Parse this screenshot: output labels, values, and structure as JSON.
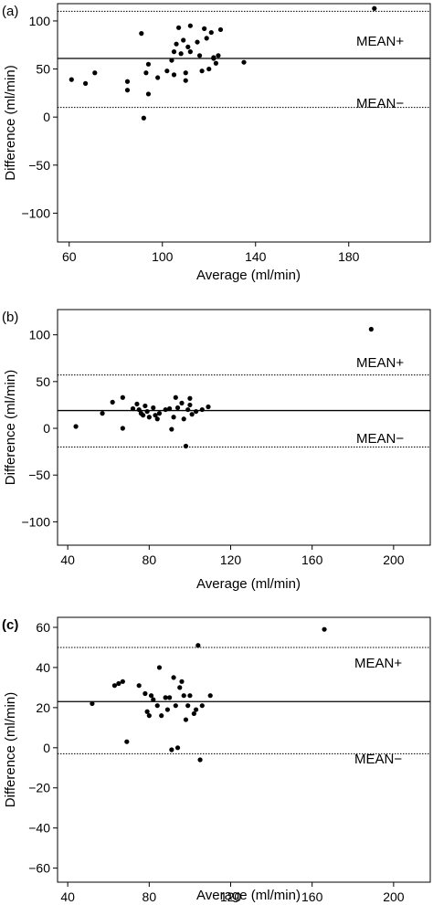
{
  "chart_data": [
    {
      "type": "scatter",
      "panel_label": "(a)",
      "xlabel": "Average (ml/min)",
      "ylabel": "Difference (ml/min)",
      "xlim": [
        55,
        215
      ],
      "ylim": [
        -130,
        118
      ],
      "xticks": [
        60,
        100,
        140,
        180
      ],
      "yticks": [
        100,
        50,
        0,
        -50,
        -100
      ],
      "lines": {
        "mean": 61,
        "upper": 110,
        "lower": 10
      },
      "annotations": [
        "MEAN+",
        "MEAN−"
      ],
      "points": [
        {
          "x": 61,
          "y": 39
        },
        {
          "x": 67,
          "y": 35
        },
        {
          "x": 71,
          "y": 46
        },
        {
          "x": 85,
          "y": 37
        },
        {
          "x": 85,
          "y": 28
        },
        {
          "x": 91,
          "y": 87
        },
        {
          "x": 92,
          "y": -1
        },
        {
          "x": 93,
          "y": 46
        },
        {
          "x": 94,
          "y": 55
        },
        {
          "x": 94,
          "y": 24
        },
        {
          "x": 98,
          "y": 41
        },
        {
          "x": 102,
          "y": 48
        },
        {
          "x": 104,
          "y": 59
        },
        {
          "x": 105,
          "y": 68
        },
        {
          "x": 105,
          "y": 44
        },
        {
          "x": 106,
          "y": 76
        },
        {
          "x": 107,
          "y": 93
        },
        {
          "x": 108,
          "y": 66
        },
        {
          "x": 109,
          "y": 80
        },
        {
          "x": 110,
          "y": 46
        },
        {
          "x": 110,
          "y": 38
        },
        {
          "x": 111,
          "y": 73
        },
        {
          "x": 112,
          "y": 68
        },
        {
          "x": 112,
          "y": 95
        },
        {
          "x": 115,
          "y": 78
        },
        {
          "x": 116,
          "y": 64
        },
        {
          "x": 117,
          "y": 48
        },
        {
          "x": 118,
          "y": 92
        },
        {
          "x": 119,
          "y": 82
        },
        {
          "x": 120,
          "y": 50
        },
        {
          "x": 121,
          "y": 88
        },
        {
          "x": 122,
          "y": 61
        },
        {
          "x": 122,
          "y": 62
        },
        {
          "x": 123,
          "y": 56
        },
        {
          "x": 124,
          "y": 64
        },
        {
          "x": 125,
          "y": 91
        },
        {
          "x": 135,
          "y": 57
        },
        {
          "x": 191,
          "y": 113
        }
      ]
    },
    {
      "type": "scatter",
      "panel_label": "(b)",
      "xlabel": "Average (ml/min)",
      "ylabel": "Difference (ml/min)",
      "xlim": [
        35,
        218
      ],
      "ylim": [
        -125,
        127
      ],
      "xticks": [
        40,
        80,
        120,
        160,
        200
      ],
      "yticks": [
        100,
        50,
        0,
        -50,
        -100
      ],
      "lines": {
        "mean": 19,
        "upper": 57,
        "lower": -20
      },
      "annotations": [
        "MEAN+",
        "MEAN−"
      ],
      "points": [
        {
          "x": 44,
          "y": 2
        },
        {
          "x": 57,
          "y": 16
        },
        {
          "x": 62,
          "y": 28
        },
        {
          "x": 67,
          "y": 33
        },
        {
          "x": 67,
          "y": 0
        },
        {
          "x": 72,
          "y": 21
        },
        {
          "x": 74,
          "y": 26
        },
        {
          "x": 75,
          "y": 20
        },
        {
          "x": 76,
          "y": 16
        },
        {
          "x": 77,
          "y": 14
        },
        {
          "x": 78,
          "y": 24
        },
        {
          "x": 79,
          "y": 18
        },
        {
          "x": 80,
          "y": 12
        },
        {
          "x": 82,
          "y": 22
        },
        {
          "x": 83,
          "y": 14
        },
        {
          "x": 84,
          "y": 10
        },
        {
          "x": 85,
          "y": 16
        },
        {
          "x": 88,
          "y": 20
        },
        {
          "x": 90,
          "y": 21
        },
        {
          "x": 91,
          "y": -1
        },
        {
          "x": 92,
          "y": 12
        },
        {
          "x": 93,
          "y": 33
        },
        {
          "x": 94,
          "y": 22
        },
        {
          "x": 96,
          "y": 27
        },
        {
          "x": 97,
          "y": 10
        },
        {
          "x": 98,
          "y": -19
        },
        {
          "x": 99,
          "y": 20
        },
        {
          "x": 100,
          "y": 32
        },
        {
          "x": 100,
          "y": 25
        },
        {
          "x": 101,
          "y": 15
        },
        {
          "x": 103,
          "y": 18
        },
        {
          "x": 106,
          "y": 20
        },
        {
          "x": 109,
          "y": 23
        },
        {
          "x": 189,
          "y": 106
        }
      ]
    },
    {
      "type": "scatter",
      "panel_label": "(c)",
      "xlabel": "Average (ml/min)",
      "ylabel": "Difference (ml/min)",
      "xlim": [
        35,
        218
      ],
      "ylim": [
        -67,
        65
      ],
      "xticks": [
        40,
        80,
        120,
        160,
        200
      ],
      "yticks": [
        60,
        40,
        20,
        0,
        -20,
        -40,
        -60
      ],
      "lines": {
        "mean": 23,
        "upper": 50,
        "lower": -3
      },
      "annotations": [
        "MEAN+",
        "MEAN−"
      ],
      "points": [
        {
          "x": 52,
          "y": 22
        },
        {
          "x": 63,
          "y": 31
        },
        {
          "x": 65,
          "y": 32
        },
        {
          "x": 67,
          "y": 33
        },
        {
          "x": 69,
          "y": 3
        },
        {
          "x": 75,
          "y": 31
        },
        {
          "x": 78,
          "y": 27
        },
        {
          "x": 79,
          "y": 18
        },
        {
          "x": 80,
          "y": 16
        },
        {
          "x": 81,
          "y": 26
        },
        {
          "x": 82,
          "y": 24
        },
        {
          "x": 84,
          "y": 21
        },
        {
          "x": 85,
          "y": 40
        },
        {
          "x": 86,
          "y": 16
        },
        {
          "x": 88,
          "y": 25
        },
        {
          "x": 89,
          "y": 19
        },
        {
          "x": 90,
          "y": 25
        },
        {
          "x": 91,
          "y": -1
        },
        {
          "x": 92,
          "y": 35
        },
        {
          "x": 93,
          "y": 21
        },
        {
          "x": 94,
          "y": 0
        },
        {
          "x": 95,
          "y": 30
        },
        {
          "x": 96,
          "y": 33
        },
        {
          "x": 97,
          "y": 26
        },
        {
          "x": 98,
          "y": 14
        },
        {
          "x": 99,
          "y": 21
        },
        {
          "x": 100,
          "y": 26
        },
        {
          "x": 102,
          "y": 17
        },
        {
          "x": 103,
          "y": 19
        },
        {
          "x": 104,
          "y": 51
        },
        {
          "x": 105,
          "y": -6
        },
        {
          "x": 106,
          "y": 21
        },
        {
          "x": 110,
          "y": 26
        },
        {
          "x": 166,
          "y": 59
        }
      ]
    }
  ]
}
